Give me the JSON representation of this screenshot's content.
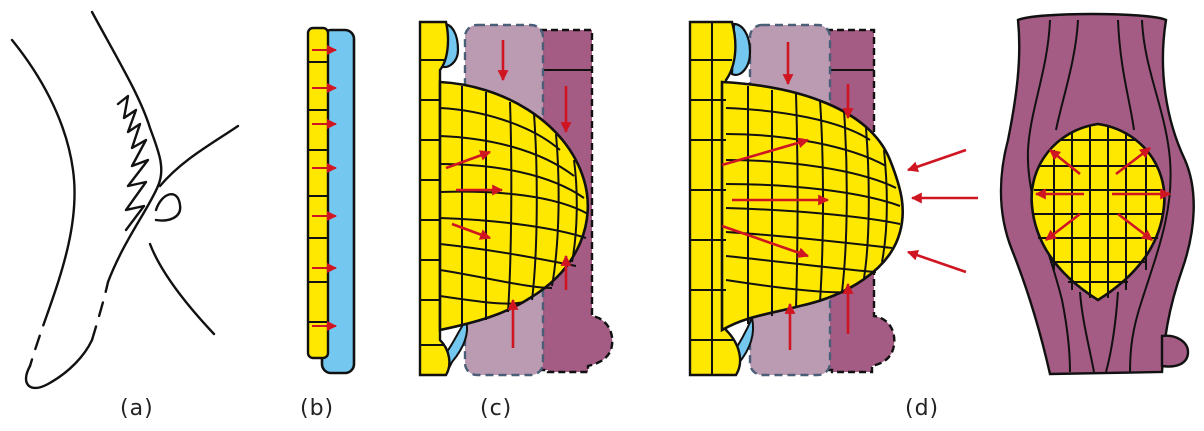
{
  "panels": [
    {
      "id": "a",
      "caption": "(a)"
    },
    {
      "id": "b",
      "caption": "(b)"
    },
    {
      "id": "c",
      "caption": "(c)"
    },
    {
      "id": "d",
      "caption": "(d)"
    }
  ],
  "colors": {
    "callus_yellow": "#ffe800",
    "blue_layer": "#74c8f0",
    "light_mauve": "#bb9bb1",
    "dark_mauve": "#a45b84",
    "arrow_red": "#d01522",
    "outline": "#111111",
    "dashed_outline": "#4b5e78"
  }
}
